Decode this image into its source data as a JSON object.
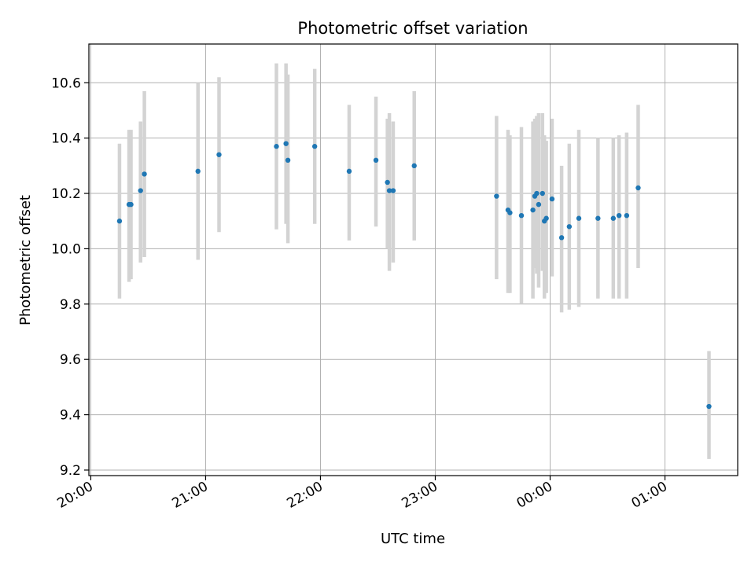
{
  "chart_data": {
    "type": "scatter",
    "title": "Photometric offset variation",
    "xlabel": "UTC time",
    "ylabel": "Photometric offset",
    "x_ticks": [
      "20:00",
      "21:00",
      "22:00",
      "23:00",
      "00:00",
      "01:00"
    ],
    "y_ticks": [
      "9.2",
      "9.4",
      "9.6",
      "9.8",
      "10.0",
      "10.2",
      "10.4",
      "10.6"
    ],
    "xlim_minutes_from_first_tick": [
      -1,
      338
    ],
    "ylim": [
      9.18,
      10.74
    ],
    "grid": true,
    "colors": {
      "points": "#1f77b4",
      "errorbars": "#d3d3d3",
      "grid": "#b0b0b0"
    },
    "points": [
      {
        "time": "20:15",
        "y": 10.1,
        "lo": 9.82,
        "hi": 10.38
      },
      {
        "time": "20:20",
        "y": 10.16,
        "lo": 9.88,
        "hi": 10.43
      },
      {
        "time": "20:21",
        "y": 10.16,
        "lo": 9.89,
        "hi": 10.43
      },
      {
        "time": "20:26",
        "y": 10.21,
        "lo": 9.95,
        "hi": 10.46
      },
      {
        "time": "20:28",
        "y": 10.27,
        "lo": 9.97,
        "hi": 10.57
      },
      {
        "time": "20:56",
        "y": 10.28,
        "lo": 9.96,
        "hi": 10.6
      },
      {
        "time": "21:07",
        "y": 10.34,
        "lo": 10.06,
        "hi": 10.62
      },
      {
        "time": "21:37",
        "y": 10.37,
        "lo": 10.07,
        "hi": 10.67
      },
      {
        "time": "21:42",
        "y": 10.38,
        "lo": 10.09,
        "hi": 10.67
      },
      {
        "time": "21:43",
        "y": 10.32,
        "lo": 10.02,
        "hi": 10.63
      },
      {
        "time": "21:57",
        "y": 10.37,
        "lo": 10.09,
        "hi": 10.65
      },
      {
        "time": "22:15",
        "y": 10.28,
        "lo": 10.03,
        "hi": 10.52
      },
      {
        "time": "22:29",
        "y": 10.32,
        "lo": 10.08,
        "hi": 10.55
      },
      {
        "time": "22:35",
        "y": 10.24,
        "lo": 10.0,
        "hi": 10.47
      },
      {
        "time": "22:36",
        "y": 10.21,
        "lo": 9.92,
        "hi": 10.49
      },
      {
        "time": "22:38",
        "y": 10.21,
        "lo": 9.95,
        "hi": 10.46
      },
      {
        "time": "22:49",
        "y": 10.3,
        "lo": 10.03,
        "hi": 10.57
      },
      {
        "time": "23:32",
        "y": 10.19,
        "lo": 9.89,
        "hi": 10.48
      },
      {
        "time": "23:38",
        "y": 10.14,
        "lo": 9.84,
        "hi": 10.43
      },
      {
        "time": "23:39",
        "y": 10.13,
        "lo": 9.84,
        "hi": 10.41
      },
      {
        "time": "23:45",
        "y": 10.12,
        "lo": 9.8,
        "hi": 10.44
      },
      {
        "time": "23:51",
        "y": 10.14,
        "lo": 9.82,
        "hi": 10.46
      },
      {
        "time": "23:52",
        "y": 10.19,
        "lo": 9.93,
        "hi": 10.47
      },
      {
        "time": "23:53",
        "y": 10.2,
        "lo": 9.91,
        "hi": 10.48
      },
      {
        "time": "23:54",
        "y": 10.16,
        "lo": 9.86,
        "hi": 10.49
      },
      {
        "time": "23:56",
        "y": 10.2,
        "lo": 9.92,
        "hi": 10.49
      },
      {
        "time": "23:57",
        "y": 10.1,
        "lo": 9.82,
        "hi": 10.41
      },
      {
        "time": "23:58",
        "y": 10.11,
        "lo": 9.84,
        "hi": 10.39
      },
      {
        "time": "00:01",
        "y": 10.18,
        "lo": 9.9,
        "hi": 10.47
      },
      {
        "time": "00:06",
        "y": 10.04,
        "lo": 9.77,
        "hi": 10.3
      },
      {
        "time": "00:10",
        "y": 10.08,
        "lo": 9.78,
        "hi": 10.38
      },
      {
        "time": "00:15",
        "y": 10.11,
        "lo": 9.79,
        "hi": 10.43
      },
      {
        "time": "00:25",
        "y": 10.11,
        "lo": 9.82,
        "hi": 10.4
      },
      {
        "time": "00:33",
        "y": 10.11,
        "lo": 9.82,
        "hi": 10.4
      },
      {
        "time": "00:36",
        "y": 10.12,
        "lo": 9.82,
        "hi": 10.41
      },
      {
        "time": "00:40",
        "y": 10.12,
        "lo": 9.82,
        "hi": 10.42
      },
      {
        "time": "00:46",
        "y": 10.22,
        "lo": 9.93,
        "hi": 10.52
      },
      {
        "time": "01:23",
        "y": 9.43,
        "lo": 9.24,
        "hi": 9.63
      }
    ]
  }
}
